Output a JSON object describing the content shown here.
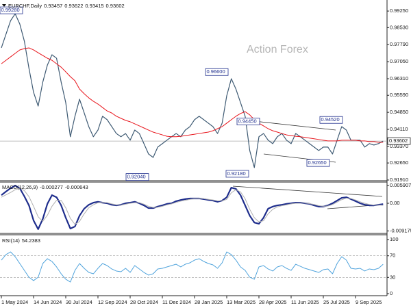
{
  "chart_data": [
    {
      "type": "line",
      "header": {
        "symbol": "EURCHF,Daily",
        "open": 0.93457,
        "high": 0.93622,
        "low": 0.93415
      },
      "watermark": "Action Forex",
      "ylim": [
        0.9191,
        0.997
      ],
      "yticks": [
        {
          "value": 0.9925,
          "label": "0.99250"
        },
        {
          "value": 0.9853,
          "label": "0.98530"
        },
        {
          "value": 0.9779,
          "label": "0.97790"
        },
        {
          "value": 0.9705,
          "label": "0.97050"
        },
        {
          "value": 0.9631,
          "label": "0.96310"
        },
        {
          "value": 0.9559,
          "label": "0.95590"
        },
        {
          "value": 0.9485,
          "label": "0.94850"
        },
        {
          "value": 0.9411,
          "label": "0.94110"
        },
        {
          "value": 0.9337,
          "label": "0.93370"
        },
        {
          "value": 0.9265,
          "label": "0.92650"
        },
        {
          "value": 0.9191,
          "label": "0.91910"
        }
      ],
      "series": [
        {
          "color": "#3e5a73",
          "values": [
            0.9765,
            0.9824,
            0.9883,
            0.9913,
            0.9869,
            0.9794,
            0.9676,
            0.9572,
            0.9512,
            0.9616,
            0.969,
            0.9735,
            0.972,
            0.9616,
            0.9527,
            0.9379,
            0.9468,
            0.9542,
            0.9483,
            0.9423,
            0.9379,
            0.9408,
            0.9468,
            0.9453,
            0.9423,
            0.9393,
            0.9379,
            0.9393,
            0.9364,
            0.9408,
            0.9393,
            0.9349,
            0.9304,
            0.9289,
            0.9334,
            0.9349,
            0.9364,
            0.9379,
            0.9393,
            0.9379,
            0.9408,
            0.9423,
            0.9453,
            0.9468,
            0.9453,
            0.9438,
            0.9423,
            0.9393,
            0.9438,
            0.9557,
            0.9631,
            0.9586,
            0.9527,
            0.9468,
            0.9319,
            0.9245,
            0.9379,
            0.9393,
            0.9364,
            0.9349,
            0.9379,
            0.9393,
            0.9364,
            0.9349,
            0.9393,
            0.9379,
            0.9364,
            0.9349,
            0.9334,
            0.9319,
            0.9334,
            0.9334,
            0.9304,
            0.9364,
            0.9423,
            0.9408,
            0.9364,
            0.9364,
            0.9364,
            0.9334,
            0.9349,
            0.9343,
            0.9349,
            0.93602
          ]
        },
        {
          "color": "#e8141b",
          "values": [
            0.9696,
            0.9711,
            0.9726,
            0.9741,
            0.9756,
            0.9762,
            0.9765,
            0.9756,
            0.9744,
            0.9732,
            0.972,
            0.9711,
            0.9696,
            0.9681,
            0.9661,
            0.964,
            0.9622,
            0.9586,
            0.9566,
            0.9548,
            0.9533,
            0.9521,
            0.9506,
            0.9491,
            0.9482,
            0.9468,
            0.9459,
            0.945,
            0.9444,
            0.9435,
            0.9426,
            0.9417,
            0.9408,
            0.9399,
            0.9393,
            0.9387,
            0.9381,
            0.9379,
            0.9379,
            0.9381,
            0.9384,
            0.9387,
            0.939,
            0.9393,
            0.9396,
            0.9399,
            0.9405,
            0.9414,
            0.9423,
            0.9438,
            0.9453,
            0.9468,
            0.948,
            0.9488,
            0.9474,
            0.9453,
            0.9438,
            0.9426,
            0.9414,
            0.9405,
            0.9399,
            0.9393,
            0.9387,
            0.9384,
            0.9381,
            0.9379,
            0.9376,
            0.9373,
            0.937,
            0.9367,
            0.9364,
            0.9361,
            0.9361,
            0.9361,
            0.9364,
            0.9364,
            0.9364,
            0.9364,
            0.9361,
            0.9361,
            0.9358,
            0.9358,
            0.9355,
            0.9355
          ]
        }
      ],
      "annotations": [
        {
          "value": 0.9928,
          "label": "0.99280"
        },
        {
          "value": 0.966,
          "label": "0.96600"
        },
        {
          "value": 0.9445,
          "label": "0.94450"
        },
        {
          "value": 0.9452,
          "label": "0.94520"
        },
        {
          "value": 0.9265,
          "label": "0.92650"
        },
        {
          "value": 0.9218,
          "label": "0.92180"
        },
        {
          "value": 0.9204,
          "label": "0.92040"
        }
      ]
    },
    {
      "type": "line",
      "label": "MACD(12,26,9)",
      "ylim": [
        -0.01,
        0.00705
      ],
      "yticks": [
        0.005907,
        {
          "value": 0,
          "label": "0.00"
        },
        -0.009175
      ],
      "series": [
        {
          "color": "#1e2d8c",
          "values": [
            0.0027,
            0.0039,
            0.005,
            0.0059,
            0.005,
            0.0023,
            -0.0007,
            -0.0057,
            -0.0086,
            -0.0052,
            -0.0002,
            0.0027,
            0.002,
            -0.0007,
            -0.0048,
            -0.0084,
            -0.0077,
            -0.0041,
            -0.0018,
            -0.0005,
            0.0002,
            0.0005,
            0.0002,
            0,
            -0.0005,
            -0.0007,
            -0.0005,
            0,
            0.0002,
            0.0005,
            0,
            -0.0007,
            -0.0016,
            -0.0016,
            -0.0011,
            -0.0007,
            -0.0002,
            0,
            0.0007,
            0.0011,
            0.0014,
            0.0016,
            0.0016,
            0.0016,
            0.0014,
            0.0011,
            0.0009,
            0.0005,
            0.0009,
            0.002,
            0.0052,
            0.0048,
            0.0027,
            -0.0007,
            -0.0041,
            -0.0064,
            -0.0068,
            -0.0048,
            -0.0018,
            -0.0011,
            -0.0007,
            -0.0005,
            -0.0002,
            0,
            0.0002,
            0.0002,
            0,
            -0.0002,
            -0.0007,
            -0.0011,
            -0.0011,
            -0.0007,
            0,
            0.0009,
            0.0018,
            0.002,
            0.0014,
            0.0007,
            0,
            -0.0005,
            -0.0007,
            -0.0007,
            -0.0005,
            -0.000277
          ]
        },
        {
          "color": "#b0b0b0",
          "values": [
            0.002,
            0.0028,
            0.0036,
            0.0045,
            0.005,
            0.0042,
            0.0022,
            -0.001,
            -0.0045,
            -0.006,
            -0.004,
            -0.001,
            0.001,
            0.001,
            -0.0015,
            -0.005,
            -0.007,
            -0.006,
            -0.0035,
            -0.0015,
            -0.0005,
            0.0002,
            0.0003,
            0.0002,
            -0.0002,
            -0.0005,
            -0.0006,
            -0.0003,
            0,
            0.0002,
            0.0002,
            -0.0003,
            -0.001,
            -0.0014,
            -0.0013,
            -0.001,
            -0.0005,
            -0.0002,
            0.0003,
            0.0007,
            0.001,
            0.0013,
            0.0015,
            0.0016,
            0.0015,
            0.0013,
            0.0011,
            0.0008,
            0.0008,
            0.0013,
            0.0035,
            0.0045,
            0.0038,
            0.0015,
            -0.002,
            -0.0048,
            -0.0062,
            -0.0058,
            -0.0035,
            -0.002,
            -0.0012,
            -0.0008,
            -0.0005,
            -0.0002,
            0,
            0.0001,
            0.0001,
            -0.0001,
            -0.0004,
            -0.0008,
            -0.001,
            -0.0009,
            -0.0004,
            0.0004,
            0.0012,
            0.0017,
            0.0016,
            0.0011,
            0.0005,
            0,
            -0.0004,
            -0.0006,
            -0.0006,
            -0.000643
          ]
        }
      ]
    },
    {
      "type": "line",
      "label": "RSI(14)",
      "ylim": [
        -3.8,
        107.6
      ],
      "yticks": [
        100,
        70,
        30,
        0
      ],
      "categories": [
        "1 May 2024",
        null,
        null,
        null,
        null,
        null,
        null,
        "14 Jun 2024",
        null,
        null,
        null,
        null,
        null,
        null,
        "30 Jul 2024",
        null,
        null,
        null,
        null,
        null,
        null,
        "12 Sep 2024",
        null,
        null,
        null,
        null,
        null,
        null,
        "28 Oct 2024",
        null,
        null,
        null,
        null,
        null,
        null,
        "11 Dec 2024",
        null,
        null,
        null,
        null,
        null,
        null,
        "28 Jan 2025",
        null,
        null,
        null,
        null,
        null,
        null,
        "13 Mar 2025",
        null,
        null,
        null,
        null,
        null,
        null,
        "28 Apr 2025",
        null,
        null,
        null,
        null,
        null,
        null,
        "11 Jun 2025",
        null,
        null,
        null,
        null,
        null,
        null,
        "25 Jul 2025",
        null,
        null,
        null,
        null,
        null,
        null,
        "9 Sep 2025",
        null,
        null,
        null,
        null,
        null,
        null
      ],
      "series": [
        {
          "color": "#4fa3dc",
          "values": [
            62.0,
            72.2,
            77.2,
            68.4,
            55.7,
            43.0,
            30.4,
            24.1,
            30.4,
            55.7,
            64.6,
            59.5,
            49.4,
            36.7,
            26.6,
            21.5,
            43.0,
            55.7,
            46.8,
            39.2,
            36.7,
            46.8,
            55.7,
            51.9,
            45.6,
            41.8,
            40.5,
            46.8,
            39.2,
            51.9,
            45.6,
            39.2,
            34.2,
            36.7,
            45.6,
            46.8,
            49.4,
            51.9,
            54.4,
            49.4,
            54.4,
            57.0,
            62.0,
            64.6,
            59.5,
            55.7,
            53.2,
            46.8,
            57.0,
            77.2,
            72.2,
            62.0,
            49.4,
            43.0,
            30.4,
            26.6,
            49.4,
            51.9,
            45.6,
            41.8,
            49.4,
            51.9,
            46.8,
            43.0,
            54.4,
            50.6,
            46.8,
            44.3,
            41.8,
            39.2,
            44.3,
            45.6,
            36.7,
            55.7,
            68.4,
            62.0,
            46.8,
            45.6,
            46.8,
            41.8,
            45.6,
            44.3,
            46.8,
            54.2383
          ]
        }
      ]
    }
  ]
}
